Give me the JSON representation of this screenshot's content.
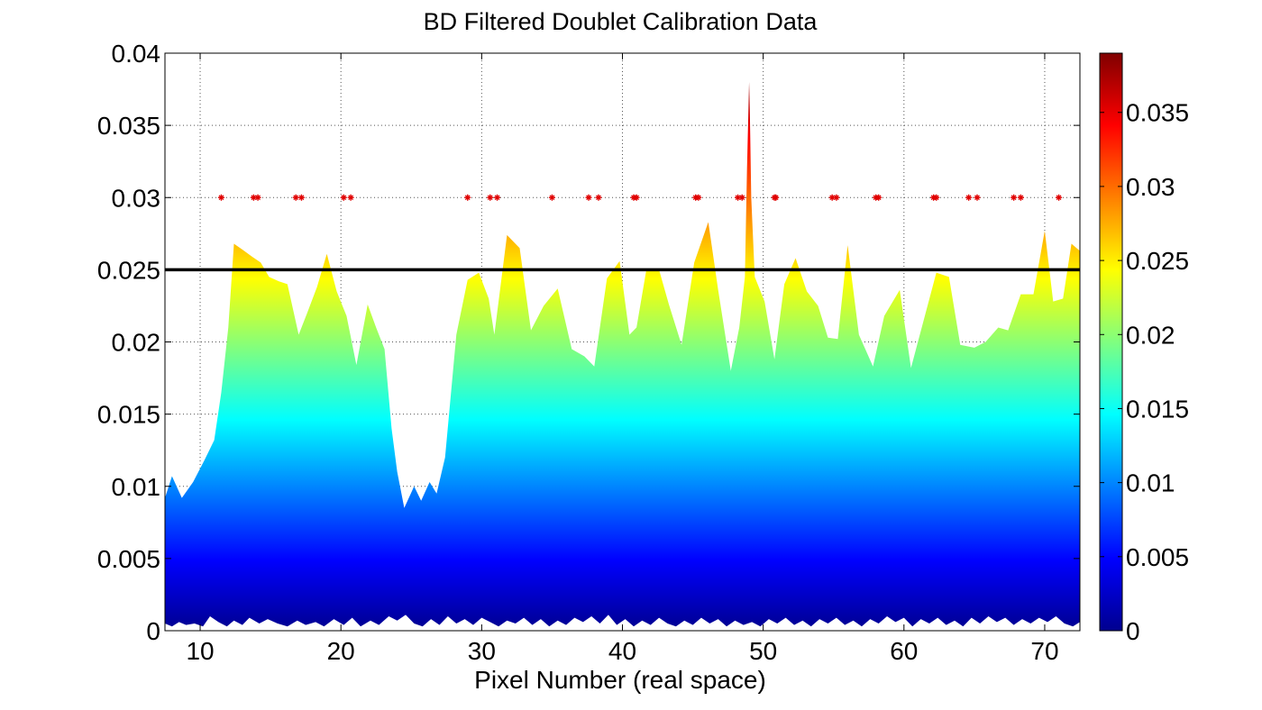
{
  "chart_data": {
    "type": "area",
    "title": "BD Filtered Doublet Calibration Data",
    "xlabel": "Pixel Number (real space)",
    "ylabel": "",
    "xlim": [
      7.5,
      72.5
    ],
    "ylim": [
      0,
      0.04
    ],
    "xticks": [
      10,
      20,
      30,
      40,
      50,
      60,
      70
    ],
    "yticks": [
      0,
      0.005,
      0.01,
      0.015,
      0.02,
      0.025,
      0.03,
      0.035,
      0.04
    ],
    "xtick_labels": [
      "10",
      "20",
      "30",
      "40",
      "50",
      "60",
      "70"
    ],
    "ytick_labels": [
      "0",
      "0.005",
      "0.01",
      "0.015",
      "0.02",
      "0.025",
      "0.03",
      "0.035",
      "0.04"
    ],
    "grid": true,
    "grid_style": "dotted",
    "colormap": "jet",
    "threshold_line": {
      "y": 0.025,
      "color": "#000000"
    },
    "colorbar": {
      "range": [
        0,
        0.039
      ],
      "ticks": [
        0,
        0.005,
        0.01,
        0.015,
        0.02,
        0.025,
        0.03,
        0.035
      ],
      "tick_labels": [
        "0",
        "0.005",
        "0.01",
        "0.015",
        "0.02",
        "0.025",
        "0.03",
        "0.035"
      ]
    },
    "series": [
      {
        "kind": "upper_envelope",
        "points": [
          [
            7.5,
            0.0092
          ],
          [
            8,
            0.0107
          ],
          [
            8.7,
            0.0092
          ],
          [
            9.5,
            0.0103
          ],
          [
            10.3,
            0.0118
          ],
          [
            11,
            0.0132
          ],
          [
            11.5,
            0.0165
          ],
          [
            12,
            0.021
          ],
          [
            12.4,
            0.0268
          ],
          [
            13,
            0.0264
          ],
          [
            13.7,
            0.0259
          ],
          [
            14.3,
            0.0255
          ],
          [
            14.9,
            0.0245
          ],
          [
            15.6,
            0.0242
          ],
          [
            16.2,
            0.024
          ],
          [
            17.0,
            0.0205
          ],
          [
            17.6,
            0.022
          ],
          [
            18.3,
            0.0238
          ],
          [
            19.0,
            0.0261
          ],
          [
            19.7,
            0.0235
          ],
          [
            20.4,
            0.0218
          ],
          [
            21.1,
            0.0184
          ],
          [
            21.9,
            0.0226
          ],
          [
            22.5,
            0.021
          ],
          [
            23.1,
            0.0195
          ],
          [
            23.6,
            0.014
          ],
          [
            24.0,
            0.011
          ],
          [
            24.5,
            0.0085
          ],
          [
            25.2,
            0.01
          ],
          [
            25.7,
            0.009
          ],
          [
            26.3,
            0.0103
          ],
          [
            26.8,
            0.0095
          ],
          [
            27.4,
            0.012
          ],
          [
            28.2,
            0.0205
          ],
          [
            29.0,
            0.0243
          ],
          [
            29.8,
            0.0248
          ],
          [
            30.5,
            0.023
          ],
          [
            30.9,
            0.0205
          ],
          [
            31.8,
            0.0274
          ],
          [
            32.7,
            0.0265
          ],
          [
            33.5,
            0.0208
          ],
          [
            34.4,
            0.0225
          ],
          [
            35.4,
            0.0237
          ],
          [
            36.4,
            0.0195
          ],
          [
            37.3,
            0.019
          ],
          [
            38.0,
            0.0183
          ],
          [
            38.9,
            0.0244
          ],
          [
            39.8,
            0.0256
          ],
          [
            40.5,
            0.0205
          ],
          [
            41.0,
            0.021
          ],
          [
            41.7,
            0.025
          ],
          [
            42.6,
            0.025
          ],
          [
            43.3,
            0.0226
          ],
          [
            44.2,
            0.0198
          ],
          [
            45.1,
            0.0255
          ],
          [
            46.1,
            0.0283
          ],
          [
            46.8,
            0.0236
          ],
          [
            47.7,
            0.018
          ],
          [
            48.3,
            0.021
          ],
          [
            48.7,
            0.0245
          ],
          [
            48.85,
            0.032
          ],
          [
            48.95,
            0.036
          ],
          [
            49.0,
            0.038
          ],
          [
            49.05,
            0.036
          ],
          [
            49.15,
            0.03
          ],
          [
            49.4,
            0.0245
          ],
          [
            50.1,
            0.0228
          ],
          [
            50.8,
            0.0188
          ],
          [
            51.5,
            0.024
          ],
          [
            52.3,
            0.0258
          ],
          [
            53.1,
            0.0235
          ],
          [
            53.9,
            0.0225
          ],
          [
            54.6,
            0.0203
          ],
          [
            55.3,
            0.0202
          ],
          [
            56.0,
            0.0267
          ],
          [
            56.8,
            0.0205
          ],
          [
            57.8,
            0.0183
          ],
          [
            58.6,
            0.0218
          ],
          [
            59.7,
            0.0236
          ],
          [
            60.5,
            0.0182
          ],
          [
            61.4,
            0.0215
          ],
          [
            62.3,
            0.0248
          ],
          [
            63.2,
            0.0245
          ],
          [
            64.0,
            0.0198
          ],
          [
            65.0,
            0.0196
          ],
          [
            65.8,
            0.02
          ],
          [
            66.7,
            0.021
          ],
          [
            67.4,
            0.0208
          ],
          [
            68.3,
            0.0233
          ],
          [
            69.2,
            0.0233
          ],
          [
            70.0,
            0.0277
          ],
          [
            70.6,
            0.0228
          ],
          [
            71.3,
            0.023
          ],
          [
            71.9,
            0.0268
          ],
          [
            72.5,
            0.0263
          ]
        ]
      },
      {
        "kind": "lower_envelope",
        "points": [
          [
            7.5,
            0.0005
          ],
          [
            8,
            0.0003
          ],
          [
            8.5,
            0.0006
          ],
          [
            9,
            0.0004
          ],
          [
            9.6,
            0.0005
          ],
          [
            10.2,
            0.0003
          ],
          [
            10.7,
            0.001
          ],
          [
            11.3,
            0.0006
          ],
          [
            11.9,
            0.0003
          ],
          [
            12.4,
            0.0007
          ],
          [
            13.0,
            0.0004
          ],
          [
            13.5,
            0.0009
          ],
          [
            14.2,
            0.0005
          ],
          [
            14.8,
            0.0008
          ],
          [
            15.5,
            0.0005
          ],
          [
            16.2,
            0.0003
          ],
          [
            16.9,
            0.0007
          ],
          [
            17.5,
            0.0004
          ],
          [
            18.2,
            0.0006
          ],
          [
            18.8,
            0.0003
          ],
          [
            19.5,
            0.0008
          ],
          [
            20.2,
            0.0004
          ],
          [
            20.8,
            0.0009
          ],
          [
            21.4,
            0.0003
          ],
          [
            22.1,
            0.0007
          ],
          [
            22.7,
            0.0004
          ],
          [
            23.4,
            0.001
          ],
          [
            24.0,
            0.0007
          ],
          [
            24.6,
            0.0011
          ],
          [
            25.2,
            0.0005
          ],
          [
            25.8,
            0.0003
          ],
          [
            26.4,
            0.0008
          ],
          [
            27.0,
            0.0004
          ],
          [
            27.6,
            0.001
          ],
          [
            28.2,
            0.0005
          ],
          [
            28.8,
            0.0008
          ],
          [
            29.4,
            0.0004
          ],
          [
            30.0,
            0.0009
          ],
          [
            30.6,
            0.0006
          ],
          [
            31.2,
            0.0003
          ],
          [
            31.8,
            0.0007
          ],
          [
            32.4,
            0.0005
          ],
          [
            33.0,
            0.0009
          ],
          [
            33.6,
            0.0004
          ],
          [
            34.2,
            0.0008
          ],
          [
            34.8,
            0.0003
          ],
          [
            35.4,
            0.0007
          ],
          [
            36.0,
            0.0004
          ],
          [
            36.6,
            0.0009
          ],
          [
            37.2,
            0.0006
          ],
          [
            37.8,
            0.001
          ],
          [
            38.4,
            0.0005
          ],
          [
            39.0,
            0.0011
          ],
          [
            39.6,
            0.0004
          ],
          [
            40.2,
            0.0008
          ],
          [
            40.8,
            0.0003
          ],
          [
            41.4,
            0.0007
          ],
          [
            42.0,
            0.0004
          ],
          [
            42.6,
            0.0009
          ],
          [
            43.2,
            0.0005
          ],
          [
            43.8,
            0.0003
          ],
          [
            44.4,
            0.0007
          ],
          [
            45.0,
            0.0004
          ],
          [
            45.6,
            0.0009
          ],
          [
            46.2,
            0.0005
          ],
          [
            46.8,
            0.0008
          ],
          [
            47.4,
            0.0003
          ],
          [
            48.0,
            0.0007
          ],
          [
            48.6,
            0.0004
          ],
          [
            49.2,
            0.0006
          ],
          [
            49.8,
            0.0003
          ],
          [
            50.4,
            0.0008
          ],
          [
            51.0,
            0.0005
          ],
          [
            51.6,
            0.0009
          ],
          [
            52.2,
            0.0004
          ],
          [
            52.8,
            0.0007
          ],
          [
            53.4,
            0.0003
          ],
          [
            54.0,
            0.0008
          ],
          [
            54.6,
            0.0005
          ],
          [
            55.2,
            0.0009
          ],
          [
            55.8,
            0.0004
          ],
          [
            56.4,
            0.0007
          ],
          [
            57.0,
            0.0003
          ],
          [
            57.6,
            0.0008
          ],
          [
            58.2,
            0.0005
          ],
          [
            58.8,
            0.001
          ],
          [
            59.4,
            0.0006
          ],
          [
            60.0,
            0.0009
          ],
          [
            60.6,
            0.0003
          ],
          [
            61.2,
            0.0008
          ],
          [
            61.8,
            0.0005
          ],
          [
            62.4,
            0.0009
          ],
          [
            63.0,
            0.0004
          ],
          [
            63.6,
            0.0007
          ],
          [
            64.2,
            0.0003
          ],
          [
            64.8,
            0.0009
          ],
          [
            65.4,
            0.0005
          ],
          [
            66.0,
            0.001
          ],
          [
            66.6,
            0.0006
          ],
          [
            67.2,
            0.0009
          ],
          [
            67.8,
            0.0004
          ],
          [
            68.4,
            0.0008
          ],
          [
            69.0,
            0.0005
          ],
          [
            69.6,
            0.0009
          ],
          [
            70.2,
            0.0006
          ],
          [
            70.8,
            0.001
          ],
          [
            71.4,
            0.0005
          ],
          [
            72.0,
            0.0003
          ],
          [
            72.5,
            0.0006
          ]
        ]
      },
      {
        "kind": "markers",
        "marker": "*",
        "color": "#e00000",
        "y": 0.03,
        "x": [
          11.5,
          13.8,
          14.1,
          16.8,
          17.2,
          20.2,
          20.7,
          29.0,
          30.6,
          31.1,
          35.0,
          37.6,
          38.3,
          40.8,
          41.0,
          45.2,
          45.4,
          48.2,
          48.5,
          50.8,
          50.9,
          54.9,
          55.2,
          58.0,
          58.2,
          62.1,
          62.3,
          64.6,
          65.2,
          67.8,
          68.3,
          71.0
        ]
      }
    ]
  }
}
